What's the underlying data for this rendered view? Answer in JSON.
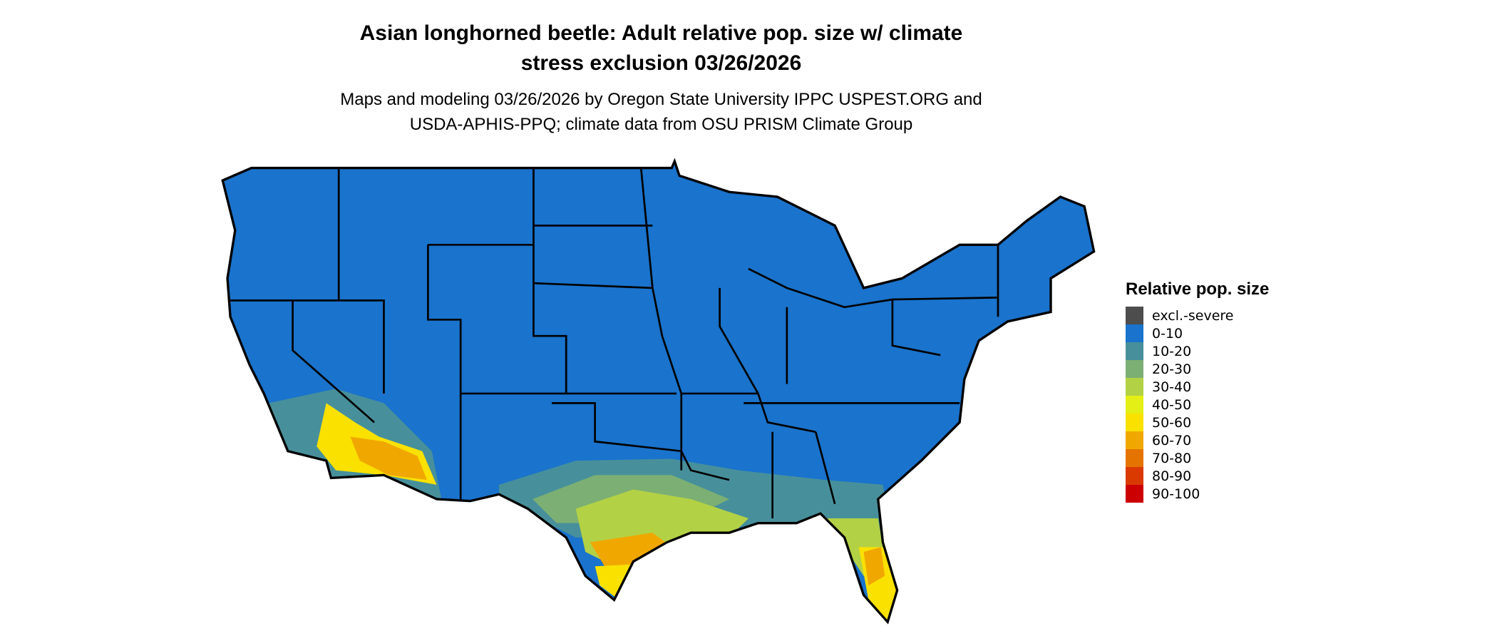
{
  "title": {
    "line1": "Asian longhorned beetle: Adult relative pop. size w/ climate",
    "line2": "stress exclusion 03/26/2026"
  },
  "subtitle": {
    "line1": "Maps and modeling 03/26/2026 by Oregon State University IPPC USPEST.ORG and",
    "line2": "USDA-APHIS-PPQ; climate data from OSU PRISM Climate Group"
  },
  "legend": {
    "title": "Relative pop. size",
    "items": [
      {
        "label": "excl.-severe",
        "color": "#4d4d4d"
      },
      {
        "label": "0-10",
        "color": "#1a73cc"
      },
      {
        "label": "10-20",
        "color": "#47909b"
      },
      {
        "label": "20-30",
        "color": "#7caf73"
      },
      {
        "label": "30-40",
        "color": "#b3d145"
      },
      {
        "label": "40-50",
        "color": "#e4ef16"
      },
      {
        "label": "50-60",
        "color": "#fae100"
      },
      {
        "label": "60-70",
        "color": "#f0a800"
      },
      {
        "label": "70-80",
        "color": "#e57300"
      },
      {
        "label": "80-90",
        "color": "#da3a00"
      },
      {
        "label": "90-100",
        "color": "#cc0000"
      }
    ]
  }
}
